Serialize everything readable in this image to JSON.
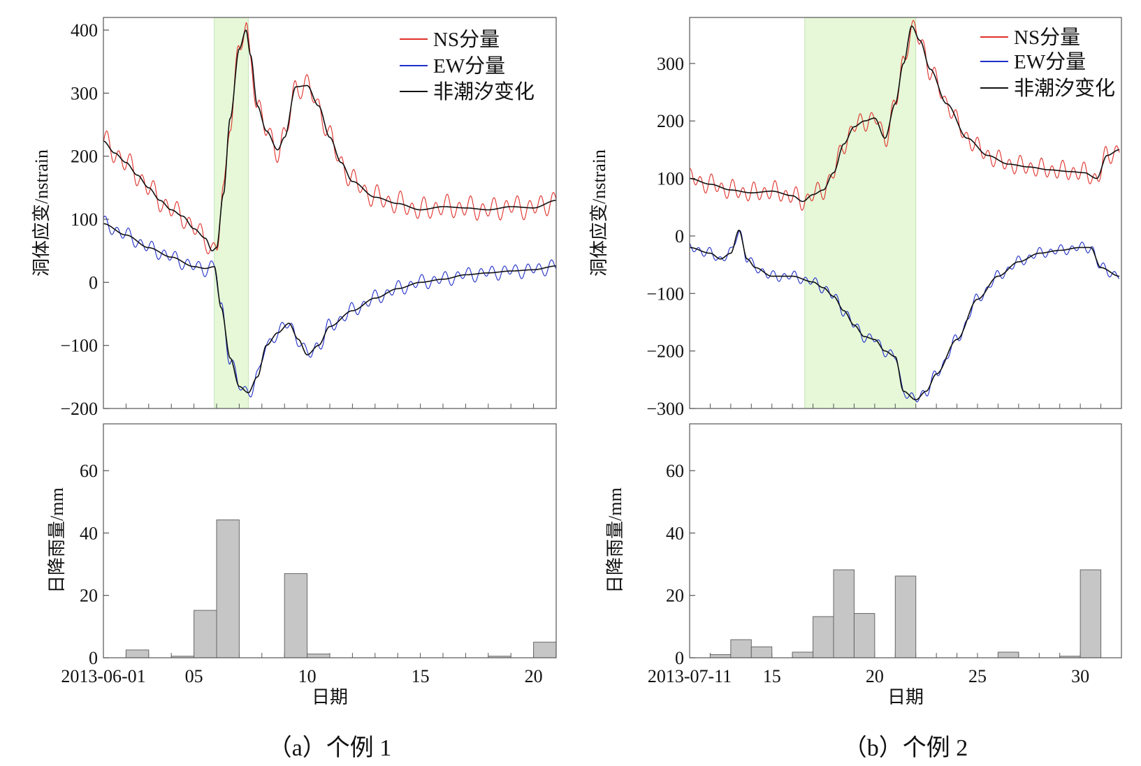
{
  "colors": {
    "ns": "#e0302a",
    "ew": "#1f2ec8",
    "nontidal": "#111111",
    "shade": "#e6f8d8",
    "bar_fill": "#c6c6c6",
    "bar_edge": "#666666"
  },
  "chart_data": [
    {
      "id": "a",
      "type": "line",
      "caption": "（a）个例 1",
      "strain": {
        "ylabel": "洞体应变/nstrain",
        "ylim": [
          -200,
          420
        ],
        "yticks": [
          -200,
          -100,
          0,
          100,
          200,
          300,
          400
        ],
        "ytick_labels": [
          "−200",
          "−100",
          "0",
          "100",
          "200",
          "300",
          "400"
        ],
        "shaded_day_range": [
          5.9,
          7.4
        ],
        "legend": [
          "NS分量",
          "EW分量",
          "非潮汐变化"
        ],
        "legend_position": "top-right",
        "series": [
          {
            "name": "NS分量",
            "color_key": "ns",
            "tidal_amp": 14,
            "x": [
              1,
              1.5,
              2,
              2.5,
              3,
              3.5,
              4,
              4.5,
              5,
              5.5,
              5.8,
              6.0,
              6.3,
              6.6,
              7.0,
              7.3,
              7.5,
              7.8,
              8.2,
              8.7,
              9.0,
              9.5,
              10.0,
              10.5,
              11.0,
              11.5,
              12.0,
              13.0,
              14.0,
              15.0,
              16.0,
              17.0,
              18.0,
              19.0,
              20.0,
              21.0
            ],
            "y": [
              224,
              205,
              190,
              170,
              150,
              130,
              115,
              105,
              85,
              70,
              50,
              55,
              140,
              260,
              370,
              400,
              360,
              280,
              240,
              210,
              230,
              310,
              312,
              280,
              230,
              190,
              160,
              135,
              125,
              115,
              120,
              118,
              115,
              120,
              118,
              130
            ]
          },
          {
            "name": "EW分量",
            "color_key": "ew",
            "tidal_amp": 9,
            "x": [
              1,
              2,
              3,
              4,
              5,
              5.5,
              5.9,
              6.2,
              6.6,
              7.0,
              7.4,
              7.8,
              8.2,
              8.7,
              9.2,
              9.6,
              10.0,
              10.5,
              11.0,
              12.0,
              13.0,
              14.0,
              15.0,
              16.0,
              17.0,
              18.0,
              19.0,
              20.0,
              21.0
            ],
            "y": [
              93,
              75,
              55,
              40,
              25,
              22,
              25,
              -40,
              -120,
              -165,
              -175,
              -150,
              -100,
              -80,
              -65,
              -90,
              -115,
              -100,
              -70,
              -45,
              -25,
              -10,
              0,
              5,
              12,
              15,
              18,
              20,
              26
            ]
          },
          {
            "name": "非潮汐变化",
            "color_key": "nontidal",
            "tidal_amp": 0,
            "x": [
              1,
              1.5,
              2,
              2.5,
              3,
              3.5,
              4,
              4.5,
              5,
              5.5,
              5.8,
              6.0,
              6.3,
              6.6,
              7.0,
              7.3,
              7.5,
              7.8,
              8.2,
              8.7,
              9.0,
              9.5,
              10.0,
              10.5,
              11.0,
              11.5,
              12.0,
              13.0,
              14.0,
              15.0,
              16.0,
              17.0,
              18.0,
              19.0,
              20.0,
              21.0
            ],
            "y": [
              224,
              205,
              190,
              170,
              150,
              130,
              115,
              105,
              85,
              70,
              50,
              55,
              140,
              260,
              370,
              400,
              360,
              280,
              240,
              210,
              230,
              310,
              312,
              280,
              230,
              190,
              160,
              135,
              125,
              115,
              120,
              118,
              115,
              120,
              118,
              130
            ]
          },
          {
            "name": "非潮汐变化",
            "color_key": "nontidal",
            "tidal_amp": 0,
            "x": [
              1,
              2,
              3,
              4,
              5,
              5.5,
              5.9,
              6.2,
              6.6,
              7.0,
              7.4,
              7.8,
              8.2,
              8.7,
              9.2,
              9.6,
              10.0,
              10.5,
              11.0,
              12.0,
              13.0,
              14.0,
              15.0,
              16.0,
              17.0,
              18.0,
              19.0,
              20.0,
              21.0
            ],
            "y": [
              93,
              75,
              55,
              40,
              25,
              22,
              25,
              -40,
              -120,
              -165,
              -175,
              -150,
              -100,
              -80,
              -65,
              -90,
              -115,
              -100,
              -70,
              -45,
              -25,
              -10,
              0,
              5,
              12,
              15,
              18,
              20,
              26
            ]
          }
        ]
      },
      "rain": {
        "type": "bar",
        "ylabel": "日降雨量/mm",
        "xlabel": "日期",
        "ylim": [
          0,
          75
        ],
        "yticks": [
          0,
          20,
          40,
          60
        ],
        "xlim": [
          1,
          21
        ],
        "xtick_pos": [
          1,
          5,
          10,
          15,
          20
        ],
        "xtick_labels": [
          "2013-06-01",
          "05",
          "10",
          "15",
          "20"
        ],
        "days": [
          2,
          4,
          5,
          6,
          9,
          10,
          18,
          20
        ],
        "values": [
          2.5,
          0.5,
          15.2,
          44.2,
          27.0,
          1.2,
          0.5,
          5.0
        ]
      }
    },
    {
      "id": "b",
      "type": "line",
      "caption": "（b）个例 2",
      "strain": {
        "ylabel": "洞体应变/nstrain",
        "ylim": [
          -300,
          380
        ],
        "yticks": [
          -300,
          -200,
          -100,
          0,
          100,
          200,
          300
        ],
        "ytick_labels": [
          "−300",
          "−200",
          "−100",
          "0",
          "100",
          "200",
          "300"
        ],
        "shaded_day_range": [
          16.6,
          22.0
        ],
        "legend": [
          "NS分量",
          "EW分量",
          "非潮汐变化"
        ],
        "legend_position": "top-right",
        "series": [
          {
            "name": "NS分量",
            "color_key": "ns",
            "tidal_amp": 13,
            "x": [
              11,
              12,
              13,
              14,
              15,
              16,
              16.5,
              17,
              17.5,
              18,
              18.5,
              19,
              19.5,
              20,
              20.5,
              21,
              21.4,
              21.8,
              22.2,
              22.7,
              23.5,
              24.5,
              25.5,
              26.5,
              27.5,
              28.5,
              29.5,
              30.2,
              30.8,
              31.3,
              31.9
            ],
            "y": [
              100,
              90,
              80,
              75,
              78,
              70,
              60,
              72,
              80,
              110,
              160,
              190,
              200,
              205,
              170,
              230,
              300,
              365,
              340,
              290,
              230,
              170,
              140,
              125,
              120,
              115,
              112,
              110,
              100,
              140,
              150
            ]
          },
          {
            "name": "EW分量",
            "color_key": "ew",
            "tidal_amp": 7,
            "x": [
              11,
              12,
              12.5,
              13,
              13.4,
              13.8,
              14.2,
              15,
              16,
              17,
              17.5,
              18,
              18.5,
              19,
              19.5,
              20,
              20.5,
              21,
              21.4,
              22,
              22.5,
              23,
              24,
              25,
              26,
              27,
              28,
              29,
              30,
              30.5,
              31,
              31.9
            ],
            "y": [
              -20,
              -30,
              -40,
              -30,
              10,
              -40,
              -55,
              -70,
              -70,
              -80,
              -90,
              -105,
              -130,
              -155,
              -175,
              -180,
              -200,
              -210,
              -270,
              -285,
              -270,
              -240,
              -180,
              -110,
              -70,
              -45,
              -30,
              -25,
              -20,
              -20,
              -55,
              -70
            ]
          },
          {
            "name": "非潮汐变化",
            "color_key": "nontidal",
            "tidal_amp": 0,
            "x": [
              11,
              12,
              13,
              14,
              15,
              16,
              16.5,
              17,
              17.5,
              18,
              18.5,
              19,
              19.5,
              20,
              20.5,
              21,
              21.4,
              21.8,
              22.2,
              22.7,
              23.5,
              24.5,
              25.5,
              26.5,
              27.5,
              28.5,
              29.5,
              30.2,
              30.8,
              31.3,
              31.9
            ],
            "y": [
              100,
              90,
              80,
              75,
              78,
              70,
              60,
              72,
              80,
              110,
              160,
              190,
              200,
              205,
              170,
              230,
              300,
              365,
              340,
              290,
              230,
              170,
              140,
              125,
              120,
              115,
              112,
              110,
              100,
              140,
              150
            ]
          },
          {
            "name": "非潮汐变化",
            "color_key": "nontidal",
            "tidal_amp": 0,
            "x": [
              11,
              12,
              12.5,
              13,
              13.4,
              13.8,
              14.2,
              15,
              16,
              17,
              17.5,
              18,
              18.5,
              19,
              19.5,
              20,
              20.5,
              21,
              21.4,
              22,
              22.5,
              23,
              24,
              25,
              26,
              27,
              28,
              29,
              30,
              30.5,
              31,
              31.9
            ],
            "y": [
              -20,
              -30,
              -40,
              -30,
              10,
              -40,
              -55,
              -70,
              -70,
              -80,
              -90,
              -105,
              -130,
              -155,
              -175,
              -180,
              -200,
              -210,
              -270,
              -285,
              -270,
              -240,
              -180,
              -110,
              -70,
              -45,
              -30,
              -25,
              -20,
              -20,
              -55,
              -70
            ]
          }
        ]
      },
      "rain": {
        "type": "bar",
        "ylabel": "日降雨量/mm",
        "xlabel": "日期",
        "ylim": [
          0,
          75
        ],
        "yticks": [
          0,
          20,
          40,
          60
        ],
        "xlim": [
          11,
          32
        ],
        "xtick_pos": [
          11,
          15,
          20,
          25,
          30
        ],
        "xtick_labels": [
          "2013-07-11",
          "15",
          "20",
          "25",
          "30"
        ],
        "days": [
          12,
          13,
          14,
          16,
          17,
          18,
          19,
          21,
          26,
          29,
          30
        ],
        "values": [
          1.0,
          5.8,
          3.5,
          1.8,
          13.2,
          28.2,
          14.2,
          26.2,
          1.8,
          0.5,
          28.2
        ]
      }
    }
  ]
}
